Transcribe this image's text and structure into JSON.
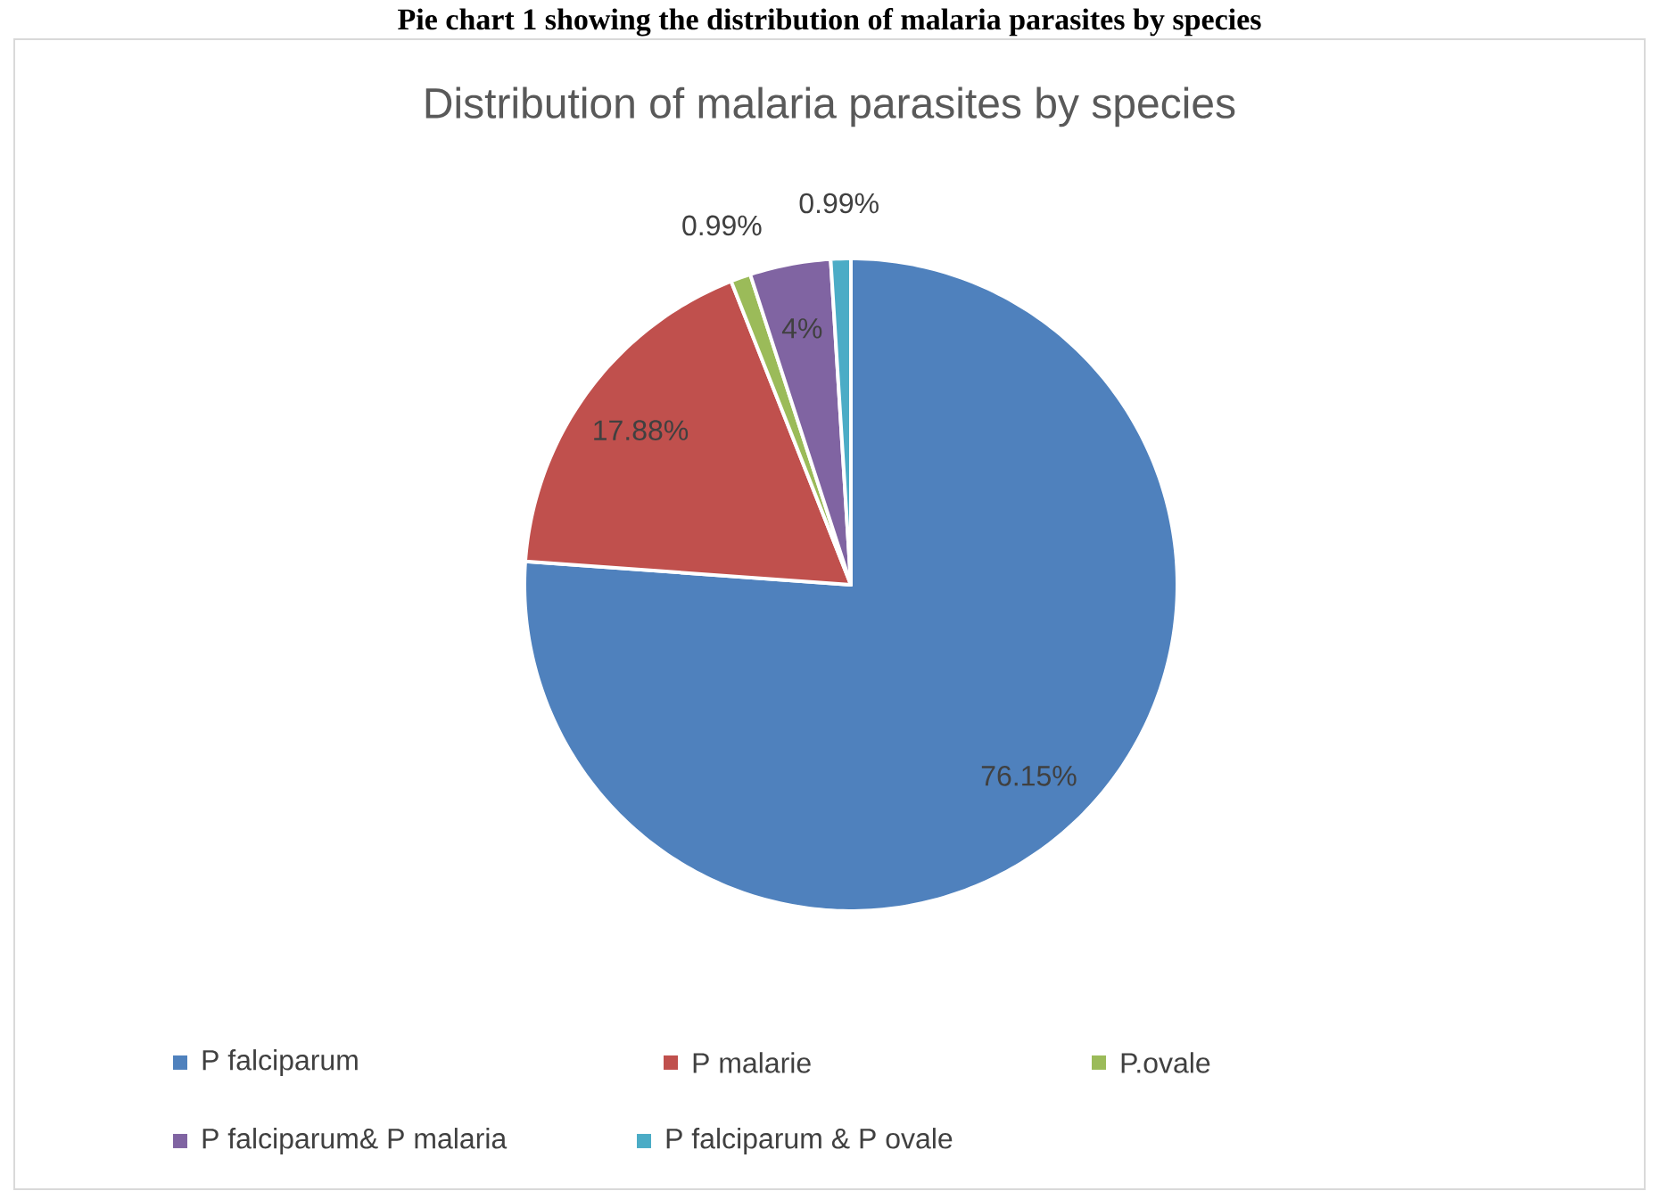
{
  "chart_data": {
    "type": "pie",
    "title": "Distribution of malaria parasites by species",
    "annotations": [
      "Pie chart 1 showing the distribution of malaria parasites by species"
    ],
    "categories": [
      "P falciparum",
      "P malarie",
      "P.ovale",
      "P falciparum& P malaria",
      "P falciparum & P ovale"
    ],
    "values": [
      76.15,
      17.88,
      0.99,
      4,
      0.99
    ],
    "value_labels": [
      "76.15%",
      "17.88%",
      "0.99%",
      "4%",
      "0.99%"
    ],
    "colors": [
      "#4f81bd",
      "#c0504d",
      "#9bbb59",
      "#8064a2",
      "#4bacc6"
    ],
    "legend": "bottom"
  }
}
